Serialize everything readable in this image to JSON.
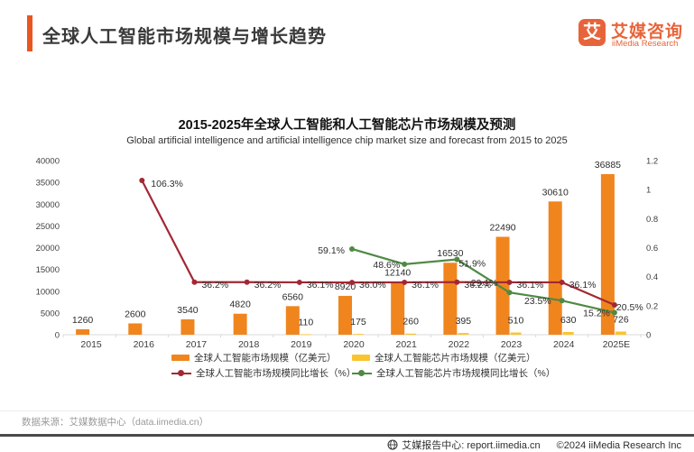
{
  "header": {
    "title": "全球人工智能市场规模与增长趋势"
  },
  "logo": {
    "mark": "艾",
    "name_cn": "艾媒咨询",
    "name_en": "iiMedia Research"
  },
  "chart": {
    "title_cn": "2015-2025年全球人工智能和人工智能芯片市场规模及预测",
    "title_en": "Global artificial intelligence and artificial intelligence chip market size and forecast from 2015 to 2025"
  },
  "chart_data": {
    "type": "combo",
    "categories": [
      "2015",
      "2016",
      "2017",
      "2018",
      "2019",
      "2020",
      "2021",
      "2022",
      "2023",
      "2024",
      "2025E"
    ],
    "series": [
      {
        "name": "全球人工智能市场规模（亿美元）",
        "kind": "bar",
        "axis": "left",
        "color": "#F0851E",
        "values": [
          1260,
          2600,
          3540,
          4820,
          6560,
          8920,
          12140,
          16530,
          22490,
          30610,
          36885
        ],
        "labels": [
          "1260",
          "2600",
          "3540",
          "4820",
          "6560",
          "8920",
          "12140",
          "16530",
          "22490",
          "30610",
          "36885"
        ]
      },
      {
        "name": "全球人工智能芯片市场规模（亿美元）",
        "kind": "bar",
        "axis": "left",
        "color": "#FAC430",
        "values": [
          null,
          null,
          null,
          null,
          110,
          175,
          260,
          395,
          510,
          630,
          726
        ],
        "labels": [
          "",
          "",
          "",
          "",
          "110",
          "175",
          "260",
          "395",
          "510",
          "630",
          "726"
        ]
      },
      {
        "name": "全球人工智能市场规模同比增长（%）",
        "kind": "line",
        "axis": "right",
        "color": "#A22834",
        "values": [
          null,
          106.3,
          36.2,
          36.2,
          36.1,
          36.0,
          36.1,
          36.2,
          36.1,
          36.1,
          20.5
        ],
        "labels": [
          "",
          "106.3%",
          "36.2%",
          "36.2%",
          "36.1%",
          "36.0%",
          "36.1%",
          "36.2%",
          "36.1%",
          "36.1%",
          "20.5%"
        ]
      },
      {
        "name": "全球人工智能芯片市场规模同比增长（%）",
        "kind": "line",
        "axis": "right",
        "color": "#4F8A43",
        "values": [
          null,
          null,
          null,
          null,
          null,
          59.1,
          48.6,
          51.9,
          29.1,
          23.5,
          15.2
        ],
        "labels": [
          "",
          "",
          "",
          "",
          "",
          "59.1%",
          "48.6%",
          "51.9%",
          "29.1%",
          "23.5%",
          "15.2%"
        ]
      }
    ],
    "left_axis": {
      "min": 0,
      "max": 40000,
      "ticks": [
        0,
        5000,
        10000,
        15000,
        20000,
        25000,
        30000,
        35000,
        40000
      ]
    },
    "right_axis": {
      "min": 0,
      "max": 1.2,
      "ticks": [
        0,
        0.2,
        0.4,
        0.6,
        0.8,
        1,
        1.2
      ]
    },
    "legend_position": "bottom",
    "grid": false
  },
  "source": {
    "text": "数据来源：艾媒数据中心（data.iimedia.cn）"
  },
  "footer": {
    "report_center": "艾媒报告中心: report.iimedia.cn",
    "copyright": "©2024 iiMedia Research Inc"
  },
  "colors": {
    "accent": "#E8571F",
    "logo": "#E7643A",
    "bar_ai": "#F0851E",
    "bar_chip": "#FAC430",
    "line_ai": "#A22834",
    "line_chip": "#4F8A43",
    "axis": "#d9d9d9",
    "label": "#2b2b2b"
  }
}
